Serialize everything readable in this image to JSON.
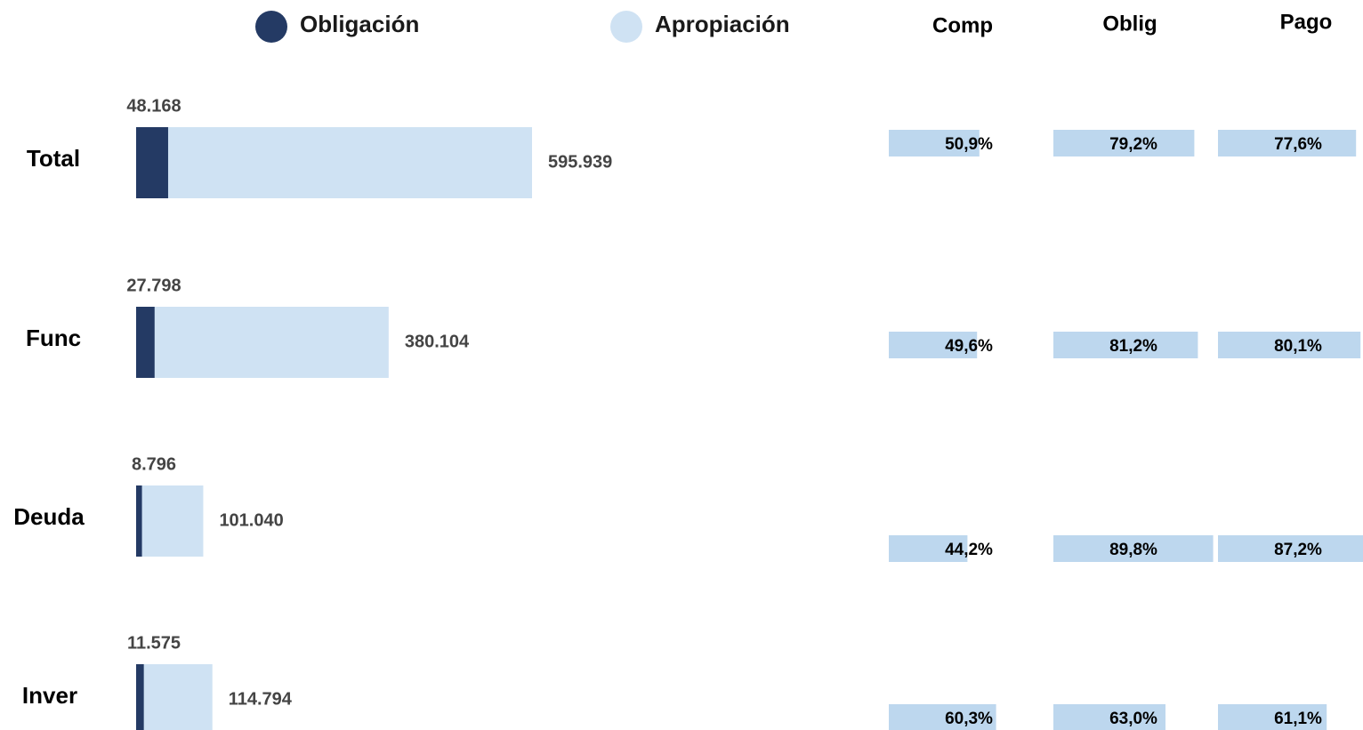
{
  "chart_data": [
    {
      "type": "overlap-bar",
      "categories": [
        "Total",
        "Func",
        "Deuda",
        "Inver"
      ],
      "xlim": [
        0,
        595939
      ],
      "series": [
        {
          "name": "Apropiación",
          "color": "#cfe2f3",
          "values": [
            595939,
            380104,
            101040,
            114794
          ],
          "value_labels": [
            "595.939",
            "380.104",
            "101.040",
            "114.794"
          ]
        },
        {
          "name": "Obligación",
          "color": "#243a64",
          "values": [
            48168,
            27798,
            8796,
            11575
          ],
          "value_labels": [
            "48.168",
            "27.798",
            "8.796",
            "11.575"
          ]
        }
      ]
    },
    {
      "type": "percent-bar",
      "xlim": [
        0,
        100
      ],
      "color": "#bdd7ee",
      "series": [
        {
          "name": "Comp",
          "values": [
            50.9,
            49.6,
            44.2,
            60.3
          ],
          "value_labels": [
            "50,9%",
            "49,6%",
            "44,2%",
            "60,3%"
          ]
        },
        {
          "name": "Oblig",
          "values": [
            79.2,
            81.2,
            89.8,
            63.0
          ],
          "value_labels": [
            "79,2%",
            "81,2%",
            "89,8%",
            "63,0%"
          ]
        },
        {
          "name": "Pago",
          "values": [
            77.6,
            80.1,
            87.2,
            61.1
          ],
          "value_labels": [
            "77,6%",
            "80,1%",
            "87,2%",
            "61,1%"
          ]
        }
      ]
    }
  ]
}
